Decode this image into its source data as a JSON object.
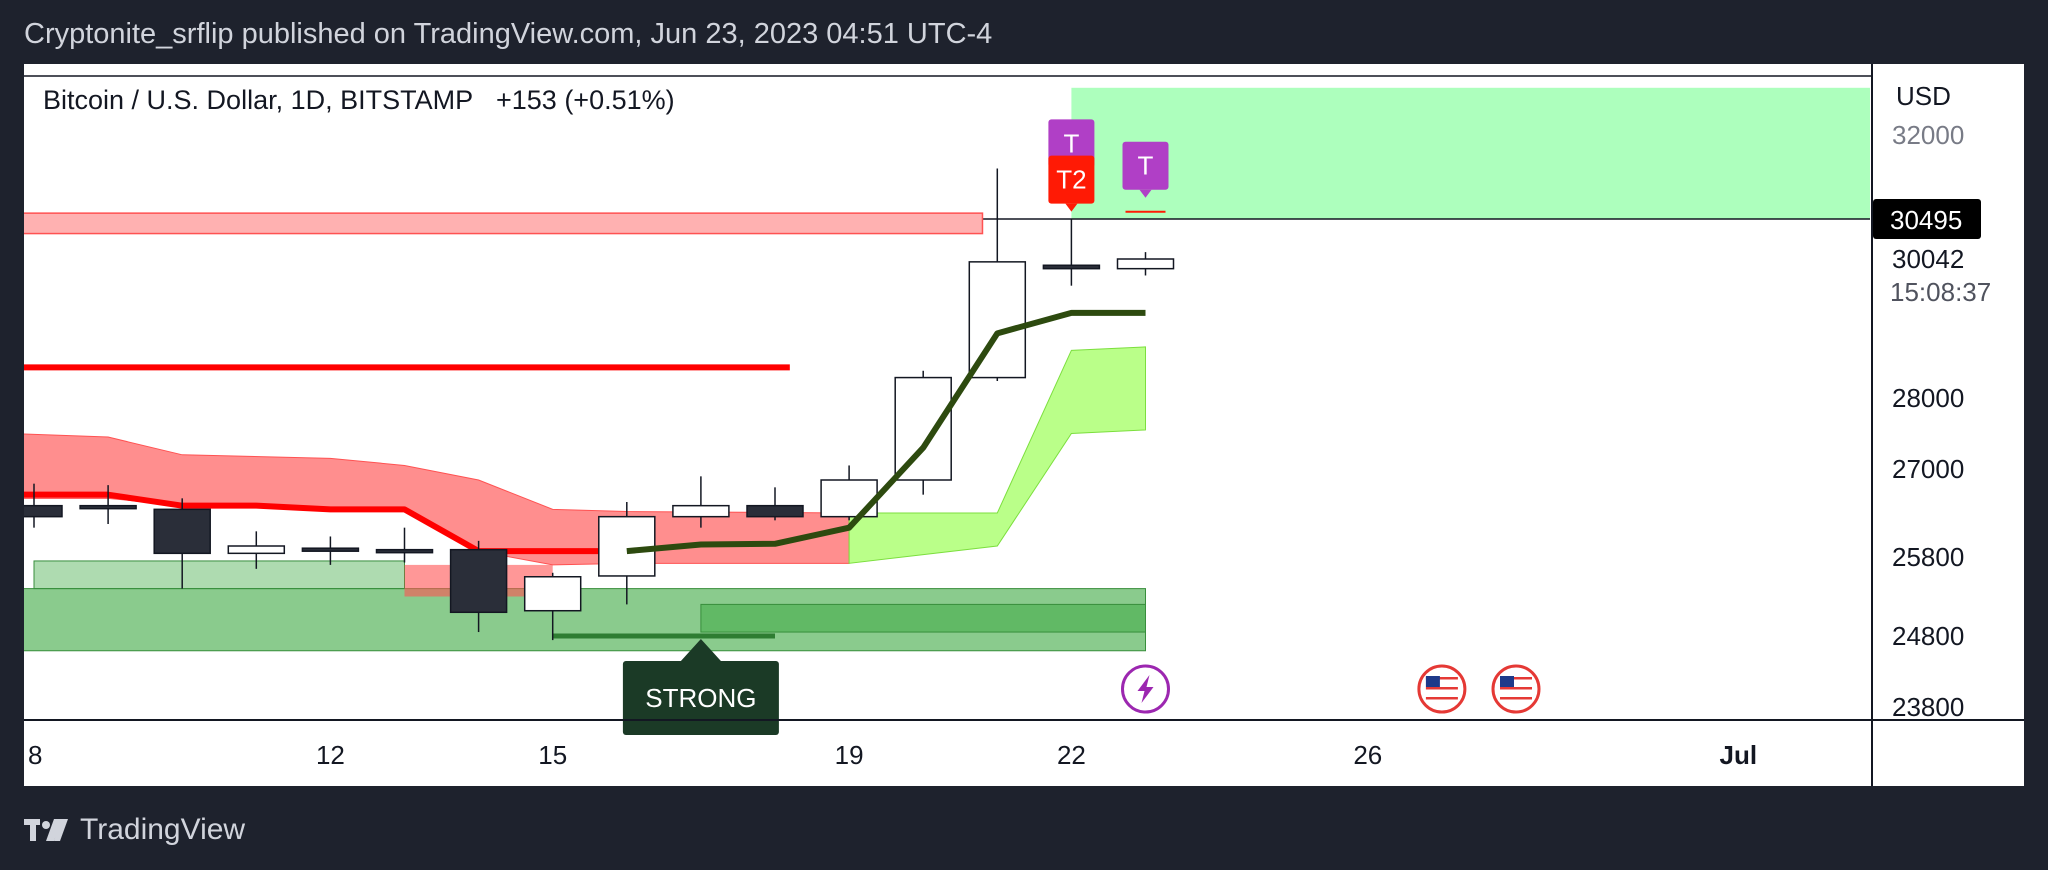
{
  "header": {
    "publisher_line": "Cryptonite_srflip published on TradingView.com, Jun 23, 2023 04:51 UTC-4"
  },
  "footer": {
    "brand": "TradingView"
  },
  "colors": {
    "bull_body": "#ffffff",
    "bear_body": "#2a2e39",
    "wick": "#131722",
    "baseline_line": "#2d4a0f",
    "red_line": "#ff0000",
    "red_cloud": "#ff5252",
    "green_cloud": "#9cff57",
    "green_zone": "#4caf50",
    "target_zone": "#adffbd",
    "marker_purple": "#b03fc6",
    "marker_red": "#ff1a05",
    "strong_label": "#1b3a26",
    "price_label_bg": "#000000"
  },
  "chart_data": {
    "type": "candlestick",
    "symbol_line": "Bitcoin / U.S. Dollar, 1D, BITSTAMP",
    "change_text": "+153 (+0.51%)",
    "currency": "USD",
    "x_axis": {
      "ticks": [
        "8",
        "12",
        "15",
        "19",
        "22",
        "26",
        "Jul"
      ],
      "tick_days": [
        8,
        12,
        15,
        19,
        22,
        26,
        31
      ]
    },
    "y_axis": {
      "ticks": [
        "32000",
        "28000",
        "27000",
        "25800",
        "24800",
        "23800"
      ],
      "tick_values": [
        32000,
        28000,
        27000,
        25800,
        24800,
        23800
      ],
      "current_price": "30495",
      "current_price_value": 30495,
      "last_close": "30042",
      "countdown": "15:08:37"
    },
    "candles": [
      {
        "day": 8,
        "open": 26500,
        "high": 26800,
        "low": 26200,
        "close": 26350
      },
      {
        "day": 9,
        "open": 26500,
        "high": 26780,
        "low": 26250,
        "close": 26480
      },
      {
        "day": 10,
        "open": 26450,
        "high": 26600,
        "low": 25400,
        "close": 25850
      },
      {
        "day": 11,
        "open": 25850,
        "high": 26150,
        "low": 25650,
        "close": 25950
      },
      {
        "day": 12,
        "open": 25920,
        "high": 26080,
        "low": 25700,
        "close": 25890
      },
      {
        "day": 13,
        "open": 25900,
        "high": 26200,
        "low": 25730,
        "close": 25880
      },
      {
        "day": 14,
        "open": 25900,
        "high": 26020,
        "low": 24850,
        "close": 25100
      },
      {
        "day": 15,
        "open": 25120,
        "high": 25600,
        "low": 24750,
        "close": 25550
      },
      {
        "day": 16,
        "open": 25560,
        "high": 26550,
        "low": 25200,
        "close": 26350
      },
      {
        "day": 17,
        "open": 26350,
        "high": 26900,
        "low": 26200,
        "close": 26500
      },
      {
        "day": 18,
        "open": 26500,
        "high": 26750,
        "low": 26300,
        "close": 26350
      },
      {
        "day": 19,
        "open": 26350,
        "high": 27050,
        "low": 26300,
        "close": 26850
      },
      {
        "day": 20,
        "open": 26850,
        "high": 28400,
        "low": 26650,
        "close": 28300
      },
      {
        "day": 21,
        "open": 28300,
        "high": 31400,
        "low": 28250,
        "close": 30000
      },
      {
        "day": 22,
        "open": 29950,
        "high": 30500,
        "low": 29650,
        "close": 29900
      },
      {
        "day": 23,
        "open": 29900,
        "high": 30120,
        "low": 29800,
        "close": 30042
      }
    ],
    "baseline_line": [
      {
        "day": 16,
        "value": 25880
      },
      {
        "day": 17,
        "value": 25970
      },
      {
        "day": 18,
        "value": 25980
      },
      {
        "day": 19,
        "value": 26200
      },
      {
        "day": 20,
        "value": 27300
      },
      {
        "day": 21,
        "value": 28950
      },
      {
        "day": 22,
        "value": 29250
      },
      {
        "day": 23,
        "value": 29250
      }
    ],
    "red_line": [
      {
        "day": 7.7,
        "value": 26650
      },
      {
        "day": 9,
        "value": 26650
      },
      {
        "day": 10,
        "value": 26500
      },
      {
        "day": 11,
        "value": 26500
      },
      {
        "day": 12,
        "value": 26450
      },
      {
        "day": 13,
        "value": 26450
      },
      {
        "day": 14,
        "value": 25880
      },
      {
        "day": 16,
        "value": 25880
      }
    ],
    "red_level": {
      "from_day": 7.7,
      "to_day": 18.2,
      "value": 28450
    },
    "red_band": {
      "from_day": 7.7,
      "to_day": 20.8,
      "low": 30330,
      "high": 30600
    },
    "red_cloud": [
      {
        "day": 7.7,
        "top": 27500,
        "bottom": 26600
      },
      {
        "day": 9,
        "top": 27450,
        "bottom": 26600
      },
      {
        "day": 10,
        "top": 27200,
        "bottom": 26500
      },
      {
        "day": 12,
        "top": 27150,
        "bottom": 26450
      },
      {
        "day": 13,
        "top": 27050,
        "bottom": 26450
      },
      {
        "day": 14,
        "top": 26850,
        "bottom": 25880
      },
      {
        "day": 15,
        "top": 26450,
        "bottom": 25700
      },
      {
        "day": 16,
        "top": 26420,
        "bottom": 25720
      },
      {
        "day": 19,
        "top": 26400,
        "bottom": 25720
      }
    ],
    "red_cloud_lower": {
      "from_day": 13,
      "to_day": 15,
      "top": 25700,
      "bottom": 25300
    },
    "green_cloud": [
      {
        "day": 19,
        "top": 26400,
        "bottom": 25720
      },
      {
        "day": 21,
        "top": 26400,
        "bottom": 25950
      },
      {
        "day": 22,
        "top": 28700,
        "bottom": 27500
      },
      {
        "day": 23,
        "top": 28750,
        "bottom": 27550
      }
    ],
    "green_zones": [
      {
        "from_day": 7.7,
        "to_day": 23,
        "low": 24620,
        "high": 25400
      },
      {
        "from_day": 17,
        "to_day": 23,
        "low": 24850,
        "high": 25200
      },
      {
        "from_day": 8,
        "to_day": 13,
        "low": 25400,
        "high": 25750
      }
    ],
    "support_line": {
      "from_day": 15,
      "to_day": 18,
      "value": 24800
    },
    "target_zone": {
      "from_day": 22,
      "low": 30495,
      "high": 32800
    },
    "markers": [
      {
        "label": "T",
        "day": 22,
        "value": 31850,
        "color": "purple"
      },
      {
        "label": "T2",
        "day": 22,
        "value": 31200,
        "color": "red"
      },
      {
        "label": "T",
        "day": 23,
        "value": 31450,
        "color": "purple"
      }
    ],
    "strong_label": {
      "text": "STRONG",
      "day": 17
    },
    "events": [
      {
        "type": "lightning-icon",
        "day": 23
      },
      {
        "type": "us-flag-icon",
        "day": 27
      },
      {
        "type": "us-flag-icon",
        "day": 28
      }
    ]
  }
}
